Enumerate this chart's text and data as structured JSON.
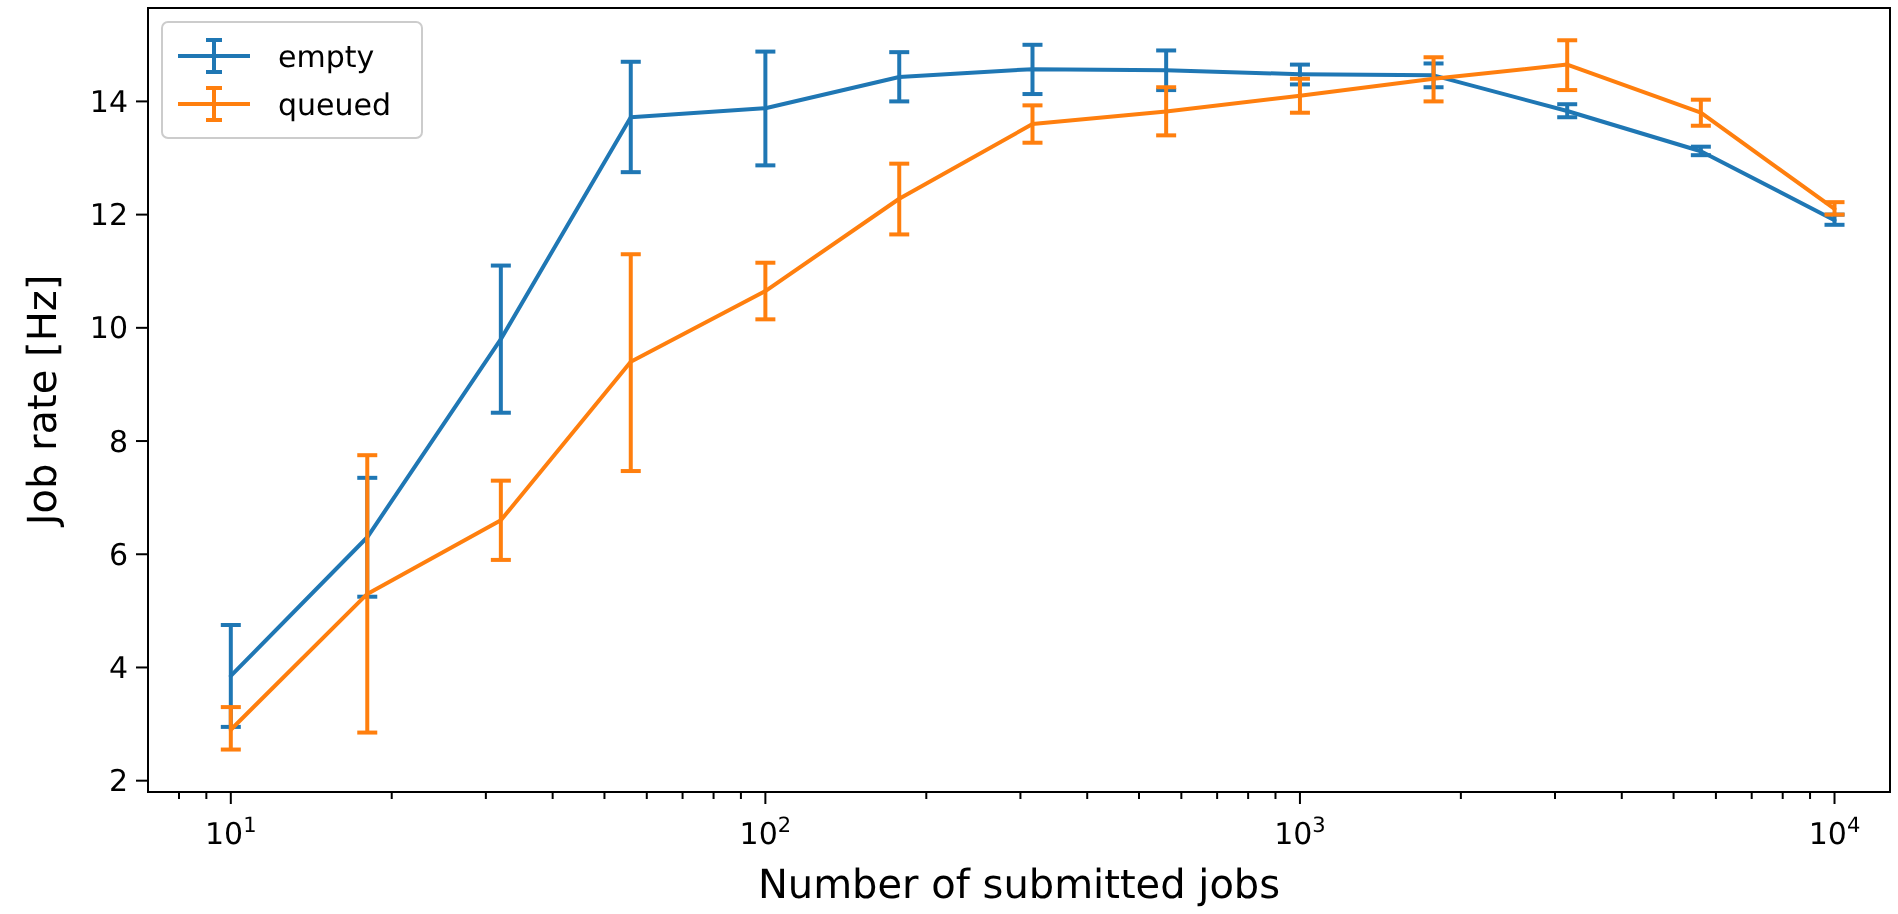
{
  "chart_data": {
    "type": "line",
    "xlabel": "Number of submitted jobs",
    "ylabel": "Job rate [Hz]",
    "log": "x",
    "x": [
      10,
      18,
      32,
      56,
      100,
      178,
      316,
      562,
      1000,
      1778,
      3162,
      5623,
      10000
    ],
    "xlim": [
      7,
      12700
    ],
    "ylim": [
      1.8,
      15.65
    ],
    "xticks": [
      {
        "value": 8,
        "label": null
      },
      {
        "value": 9,
        "label": null
      },
      {
        "value": 10,
        "label": "10$^{1}$"
      },
      {
        "value": 20,
        "label": null
      },
      {
        "value": 30,
        "label": null
      },
      {
        "value": 40,
        "label": null
      },
      {
        "value": 50,
        "label": null
      },
      {
        "value": 60,
        "label": null
      },
      {
        "value": 70,
        "label": null
      },
      {
        "value": 80,
        "label": null
      },
      {
        "value": 90,
        "label": null
      },
      {
        "value": 100,
        "label": "10$^{2}$"
      },
      {
        "value": 200,
        "label": null
      },
      {
        "value": 300,
        "label": null
      },
      {
        "value": 400,
        "label": null
      },
      {
        "value": 500,
        "label": null
      },
      {
        "value": 600,
        "label": null
      },
      {
        "value": 700,
        "label": null
      },
      {
        "value": 800,
        "label": null
      },
      {
        "value": 900,
        "label": null
      },
      {
        "value": 1000,
        "label": "10$^{3}$"
      },
      {
        "value": 2000,
        "label": null
      },
      {
        "value": 3000,
        "label": null
      },
      {
        "value": 4000,
        "label": null
      },
      {
        "value": 5000,
        "label": null
      },
      {
        "value": 6000,
        "label": null
      },
      {
        "value": 7000,
        "label": null
      },
      {
        "value": 8000,
        "label": null
      },
      {
        "value": 9000,
        "label": null
      },
      {
        "value": 10000,
        "label": "10$^{4}$"
      }
    ],
    "yticks": [
      2,
      4,
      6,
      8,
      10,
      12,
      14
    ],
    "legend": "top left",
    "grid": false,
    "marker": "none",
    "line_style": "solid",
    "series": [
      {
        "name": "empty",
        "color": "#1f77b4",
        "values": [
          3.85,
          6.3,
          9.8,
          13.72,
          13.88,
          14.43,
          14.57,
          14.55,
          14.48,
          14.46,
          13.83,
          13.12,
          11.9
        ],
        "errors": [
          [
            2.95,
            4.75
          ],
          [
            5.25,
            7.35
          ],
          [
            8.5,
            11.1
          ],
          [
            12.75,
            14.7
          ],
          [
            12.87,
            14.88
          ],
          [
            14.0,
            14.87
          ],
          [
            14.13,
            15.0
          ],
          [
            14.2,
            14.9
          ],
          [
            14.3,
            14.65
          ],
          [
            14.25,
            14.67
          ],
          [
            13.72,
            13.95
          ],
          [
            13.05,
            13.2
          ],
          [
            11.82,
            12.0
          ]
        ]
      },
      {
        "name": "queued",
        "color": "#ff7f0e",
        "values": [
          2.9,
          5.3,
          6.6,
          9.4,
          10.65,
          12.28,
          13.6,
          13.82,
          14.1,
          14.4,
          14.65,
          13.8,
          12.1
        ],
        "errors": [
          [
            2.55,
            3.3
          ],
          [
            2.85,
            7.75
          ],
          [
            5.9,
            7.3
          ],
          [
            7.47,
            11.3
          ],
          [
            10.15,
            11.15
          ],
          [
            11.65,
            12.9
          ],
          [
            13.27,
            13.93
          ],
          [
            13.4,
            14.25
          ],
          [
            13.8,
            14.4
          ],
          [
            14.0,
            14.78
          ],
          [
            14.2,
            15.08
          ],
          [
            13.57,
            14.03
          ],
          [
            12.0,
            12.22
          ]
        ]
      }
    ]
  }
}
